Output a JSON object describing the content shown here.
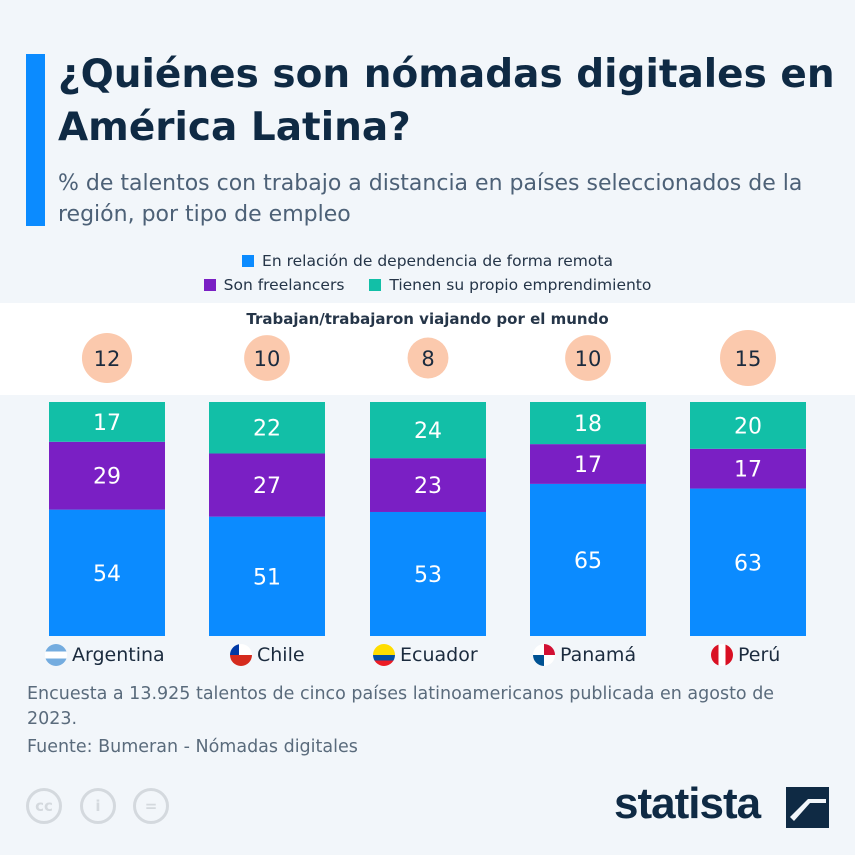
{
  "header": {
    "title": "¿Quiénes son nómadas digitales en América Latina?",
    "subtitle": "% de talentos con trabajo a distancia en países seleccionados de la región, por tipo de empleo"
  },
  "chart_data": {
    "type": "bar",
    "stacked": true,
    "categories": [
      "Argentina",
      "Chile",
      "Ecuador",
      "Panamá",
      "Perú"
    ],
    "series": [
      {
        "name": "En relación de dependencia de forma remota",
        "color": "#0b8bff",
        "values": [
          54,
          51,
          53,
          65,
          63
        ]
      },
      {
        "name": "Son freelancers",
        "color": "#7a1fc4",
        "values": [
          29,
          27,
          23,
          17,
          17
        ]
      },
      {
        "name": "Tienen su propio emprendimiento",
        "color": "#12bfa7",
        "values": [
          17,
          22,
          24,
          18,
          20
        ]
      }
    ],
    "bubbles": {
      "title": "Trabajan/trabajaron viajando por el mundo",
      "values": [
        12,
        10,
        8,
        10,
        15
      ],
      "color": "#fbc9ad"
    },
    "ylim": [
      0,
      100
    ]
  },
  "footer": {
    "note": "Encuesta a 13.925 talentos de cinco países latinoamericanos publicada en agosto de 2023.",
    "source": "Fuente: Bumeran - Nómadas digitales",
    "logo": "statista",
    "cc_icons": [
      "cc",
      "by",
      "nd"
    ]
  }
}
